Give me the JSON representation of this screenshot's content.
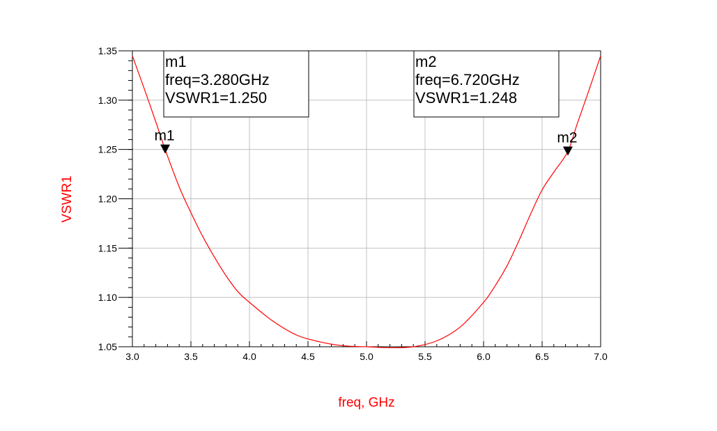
{
  "chart_data": {
    "type": "line",
    "title": "",
    "xlabel": "freq, GHz",
    "ylabel": "VSWR1",
    "xlim": [
      3.0,
      7.0
    ],
    "ylim": [
      1.05,
      1.35
    ],
    "x_ticks": [
      "3.0",
      "3.5",
      "4.0",
      "4.5",
      "5.0",
      "5.5",
      "6.0",
      "6.5",
      "7.0"
    ],
    "y_ticks": [
      "1.05",
      "1.10",
      "1.15",
      "1.20",
      "1.25",
      "1.30",
      "1.35"
    ],
    "grid": true,
    "line_color": "#ff0000",
    "label_color": "#ff0000",
    "series": [
      {
        "x": [
          3.0,
          3.1,
          3.2,
          3.28,
          3.4,
          3.5,
          3.6,
          3.7,
          3.8,
          3.9,
          4.0,
          4.2,
          4.4,
          4.6,
          4.8,
          5.0,
          5.2,
          5.4,
          5.6,
          5.8,
          6.0,
          6.1,
          6.2,
          6.3,
          6.4,
          6.5,
          6.6,
          6.72,
          6.8,
          6.9,
          7.0
        ],
        "y": [
          1.345,
          1.312,
          1.278,
          1.25,
          1.212,
          1.186,
          1.162,
          1.141,
          1.122,
          1.106,
          1.095,
          1.076,
          1.062,
          1.055,
          1.051,
          1.05,
          1.049,
          1.05,
          1.056,
          1.07,
          1.095,
          1.112,
          1.132,
          1.157,
          1.184,
          1.209,
          1.227,
          1.248,
          1.276,
          1.31,
          1.345
        ]
      }
    ],
    "markers": [
      {
        "name": "m1",
        "x": 3.28,
        "y": 1.25,
        "box_lines": [
          "m1",
          "freq=3.280GHz",
          "VSWR1=1.250"
        ]
      },
      {
        "name": "m2",
        "x": 6.72,
        "y": 1.248,
        "box_lines": [
          "m2",
          "freq=6.720GHz",
          "VSWR1=1.248"
        ]
      }
    ]
  }
}
